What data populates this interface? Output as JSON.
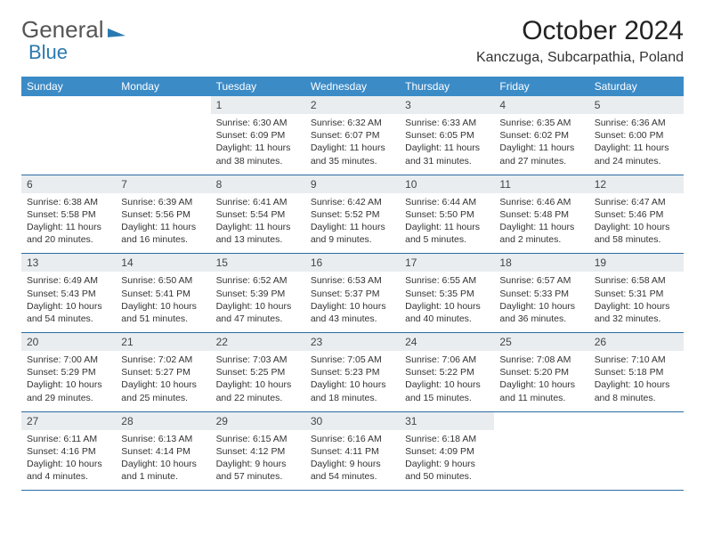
{
  "logo": {
    "part1": "General",
    "part2": "Blue"
  },
  "title": "October 2024",
  "location": "Kanczuga, Subcarpathia, Poland",
  "colors": {
    "header_bg": "#3b8bc7",
    "header_text": "#ffffff",
    "daynum_bg": "#e9edf0",
    "rule": "#2a6da3",
    "logo_blue": "#2a7ab0",
    "logo_gray": "#555555"
  },
  "weekdays": [
    "Sunday",
    "Monday",
    "Tuesday",
    "Wednesday",
    "Thursday",
    "Friday",
    "Saturday"
  ],
  "weeks": [
    [
      null,
      null,
      {
        "n": "1",
        "sr": "Sunrise: 6:30 AM",
        "ss": "Sunset: 6:09 PM",
        "d1": "Daylight: 11 hours",
        "d2": "and 38 minutes."
      },
      {
        "n": "2",
        "sr": "Sunrise: 6:32 AM",
        "ss": "Sunset: 6:07 PM",
        "d1": "Daylight: 11 hours",
        "d2": "and 35 minutes."
      },
      {
        "n": "3",
        "sr": "Sunrise: 6:33 AM",
        "ss": "Sunset: 6:05 PM",
        "d1": "Daylight: 11 hours",
        "d2": "and 31 minutes."
      },
      {
        "n": "4",
        "sr": "Sunrise: 6:35 AM",
        "ss": "Sunset: 6:02 PM",
        "d1": "Daylight: 11 hours",
        "d2": "and 27 minutes."
      },
      {
        "n": "5",
        "sr": "Sunrise: 6:36 AM",
        "ss": "Sunset: 6:00 PM",
        "d1": "Daylight: 11 hours",
        "d2": "and 24 minutes."
      }
    ],
    [
      {
        "n": "6",
        "sr": "Sunrise: 6:38 AM",
        "ss": "Sunset: 5:58 PM",
        "d1": "Daylight: 11 hours",
        "d2": "and 20 minutes."
      },
      {
        "n": "7",
        "sr": "Sunrise: 6:39 AM",
        "ss": "Sunset: 5:56 PM",
        "d1": "Daylight: 11 hours",
        "d2": "and 16 minutes."
      },
      {
        "n": "8",
        "sr": "Sunrise: 6:41 AM",
        "ss": "Sunset: 5:54 PM",
        "d1": "Daylight: 11 hours",
        "d2": "and 13 minutes."
      },
      {
        "n": "9",
        "sr": "Sunrise: 6:42 AM",
        "ss": "Sunset: 5:52 PM",
        "d1": "Daylight: 11 hours",
        "d2": "and 9 minutes."
      },
      {
        "n": "10",
        "sr": "Sunrise: 6:44 AM",
        "ss": "Sunset: 5:50 PM",
        "d1": "Daylight: 11 hours",
        "d2": "and 5 minutes."
      },
      {
        "n": "11",
        "sr": "Sunrise: 6:46 AM",
        "ss": "Sunset: 5:48 PM",
        "d1": "Daylight: 11 hours",
        "d2": "and 2 minutes."
      },
      {
        "n": "12",
        "sr": "Sunrise: 6:47 AM",
        "ss": "Sunset: 5:46 PM",
        "d1": "Daylight: 10 hours",
        "d2": "and 58 minutes."
      }
    ],
    [
      {
        "n": "13",
        "sr": "Sunrise: 6:49 AM",
        "ss": "Sunset: 5:43 PM",
        "d1": "Daylight: 10 hours",
        "d2": "and 54 minutes."
      },
      {
        "n": "14",
        "sr": "Sunrise: 6:50 AM",
        "ss": "Sunset: 5:41 PM",
        "d1": "Daylight: 10 hours",
        "d2": "and 51 minutes."
      },
      {
        "n": "15",
        "sr": "Sunrise: 6:52 AM",
        "ss": "Sunset: 5:39 PM",
        "d1": "Daylight: 10 hours",
        "d2": "and 47 minutes."
      },
      {
        "n": "16",
        "sr": "Sunrise: 6:53 AM",
        "ss": "Sunset: 5:37 PM",
        "d1": "Daylight: 10 hours",
        "d2": "and 43 minutes."
      },
      {
        "n": "17",
        "sr": "Sunrise: 6:55 AM",
        "ss": "Sunset: 5:35 PM",
        "d1": "Daylight: 10 hours",
        "d2": "and 40 minutes."
      },
      {
        "n": "18",
        "sr": "Sunrise: 6:57 AM",
        "ss": "Sunset: 5:33 PM",
        "d1": "Daylight: 10 hours",
        "d2": "and 36 minutes."
      },
      {
        "n": "19",
        "sr": "Sunrise: 6:58 AM",
        "ss": "Sunset: 5:31 PM",
        "d1": "Daylight: 10 hours",
        "d2": "and 32 minutes."
      }
    ],
    [
      {
        "n": "20",
        "sr": "Sunrise: 7:00 AM",
        "ss": "Sunset: 5:29 PM",
        "d1": "Daylight: 10 hours",
        "d2": "and 29 minutes."
      },
      {
        "n": "21",
        "sr": "Sunrise: 7:02 AM",
        "ss": "Sunset: 5:27 PM",
        "d1": "Daylight: 10 hours",
        "d2": "and 25 minutes."
      },
      {
        "n": "22",
        "sr": "Sunrise: 7:03 AM",
        "ss": "Sunset: 5:25 PM",
        "d1": "Daylight: 10 hours",
        "d2": "and 22 minutes."
      },
      {
        "n": "23",
        "sr": "Sunrise: 7:05 AM",
        "ss": "Sunset: 5:23 PM",
        "d1": "Daylight: 10 hours",
        "d2": "and 18 minutes."
      },
      {
        "n": "24",
        "sr": "Sunrise: 7:06 AM",
        "ss": "Sunset: 5:22 PM",
        "d1": "Daylight: 10 hours",
        "d2": "and 15 minutes."
      },
      {
        "n": "25",
        "sr": "Sunrise: 7:08 AM",
        "ss": "Sunset: 5:20 PM",
        "d1": "Daylight: 10 hours",
        "d2": "and 11 minutes."
      },
      {
        "n": "26",
        "sr": "Sunrise: 7:10 AM",
        "ss": "Sunset: 5:18 PM",
        "d1": "Daylight: 10 hours",
        "d2": "and 8 minutes."
      }
    ],
    [
      {
        "n": "27",
        "sr": "Sunrise: 6:11 AM",
        "ss": "Sunset: 4:16 PM",
        "d1": "Daylight: 10 hours",
        "d2": "and 4 minutes."
      },
      {
        "n": "28",
        "sr": "Sunrise: 6:13 AM",
        "ss": "Sunset: 4:14 PM",
        "d1": "Daylight: 10 hours",
        "d2": "and 1 minute."
      },
      {
        "n": "29",
        "sr": "Sunrise: 6:15 AM",
        "ss": "Sunset: 4:12 PM",
        "d1": "Daylight: 9 hours",
        "d2": "and 57 minutes."
      },
      {
        "n": "30",
        "sr": "Sunrise: 6:16 AM",
        "ss": "Sunset: 4:11 PM",
        "d1": "Daylight: 9 hours",
        "d2": "and 54 minutes."
      },
      {
        "n": "31",
        "sr": "Sunrise: 6:18 AM",
        "ss": "Sunset: 4:09 PM",
        "d1": "Daylight: 9 hours",
        "d2": "and 50 minutes."
      },
      null,
      null
    ]
  ]
}
